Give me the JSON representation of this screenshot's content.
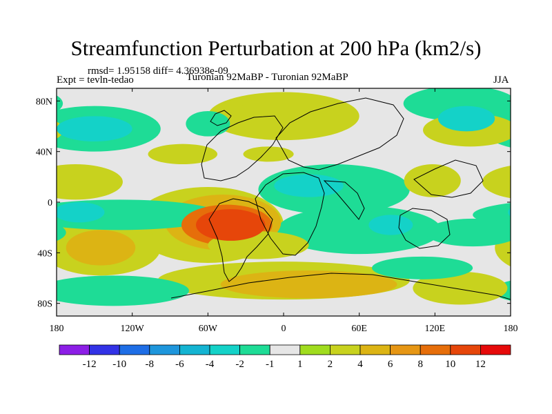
{
  "chart_data": {
    "type": "heatmap",
    "title": "Streamfunction Perturbation at 200 hPa (km2/s)",
    "stats_line": "rmsd= 1.95158 diff= 4.36938e-09",
    "left_label": "Expt = tevln-tedao",
    "center_label": "Turonian  92MaBP - Turonian  92MaBP",
    "right_label": "JJA",
    "projection": "cylindrical-equidistant",
    "x_range": [
      -180,
      180
    ],
    "y_range": [
      -90,
      90
    ],
    "x_ticks": [
      {
        "value": -180,
        "label": "180"
      },
      {
        "value": -120,
        "label": "120W"
      },
      {
        "value": -60,
        "label": "60W"
      },
      {
        "value": 0,
        "label": "0"
      },
      {
        "value": 60,
        "label": "60E"
      },
      {
        "value": 120,
        "label": "120E"
      },
      {
        "value": 180,
        "label": "180"
      }
    ],
    "y_ticks": [
      {
        "value": 80,
        "label": "80N"
      },
      {
        "value": 40,
        "label": "40N"
      },
      {
        "value": 0,
        "label": "0"
      },
      {
        "value": -40,
        "label": "40S"
      },
      {
        "value": -80,
        "label": "80S"
      }
    ],
    "colorbar": {
      "labels": [
        "-12",
        "-10",
        "-8",
        "-6",
        "-4",
        "-2",
        "-1",
        "1",
        "2",
        "4",
        "6",
        "8",
        "10",
        "12"
      ],
      "colors": [
        "#8c1ee6",
        "#3232e6",
        "#1e6ee6",
        "#1e96dc",
        "#14b4d2",
        "#14d2c8",
        "#1edc96",
        "#e6e6e6",
        "#a0dc1e",
        "#c8d21e",
        "#dcb414",
        "#e69614",
        "#e66e0a",
        "#e6460a",
        "#e60a0a"
      ]
    },
    "features": [
      {
        "lon": -42,
        "lat": -18,
        "w": 55,
        "h": 25,
        "value": 11
      },
      {
        "lon": -45,
        "lat": -18,
        "w": 72,
        "h": 32,
        "value": 8
      },
      {
        "lon": -48,
        "lat": -16,
        "w": 92,
        "h": 44,
        "value": 5
      },
      {
        "lon": -60,
        "lat": -18,
        "w": 120,
        "h": 60,
        "value": 2.5
      },
      {
        "lon": -20,
        "lat": -34,
        "w": 80,
        "h": 22,
        "value": 2
      },
      {
        "lon": -145,
        "lat": -36,
        "w": 55,
        "h": 28,
        "value": 4
      },
      {
        "lon": -145,
        "lat": -36,
        "w": 95,
        "h": 44,
        "value": 2
      },
      {
        "lon": 0,
        "lat": -62,
        "w": 200,
        "h": 30,
        "value": 2.5
      },
      {
        "lon": 20,
        "lat": -65,
        "w": 140,
        "h": 22,
        "value": 4
      },
      {
        "lon": 140,
        "lat": -68,
        "w": 75,
        "h": 26,
        "value": 2
      },
      {
        "lon": 0,
        "lat": 68,
        "w": 120,
        "h": 38,
        "value": 2
      },
      {
        "lon": 5,
        "lat": 72,
        "w": 80,
        "h": 26,
        "value": 3
      },
      {
        "lon": -165,
        "lat": 16,
        "w": 75,
        "h": 28,
        "value": 2
      },
      {
        "lon": -150,
        "lat": 17,
        "w": 40,
        "h": 16,
        "value": 3
      },
      {
        "lon": -80,
        "lat": 38,
        "w": 55,
        "h": 16,
        "value": 2
      },
      {
        "lon": -12,
        "lat": 38,
        "w": 40,
        "h": 12,
        "value": 2
      },
      {
        "lon": 118,
        "lat": 17,
        "w": 45,
        "h": 26,
        "value": 2
      },
      {
        "lon": 148,
        "lat": 57,
        "w": 75,
        "h": 26,
        "value": 2
      },
      {
        "lon": -150,
        "lat": 58,
        "w": 105,
        "h": 36,
        "value": -2
      },
      {
        "lon": -150,
        "lat": 58,
        "w": 60,
        "h": 20,
        "value": -4
      },
      {
        "lon": 140,
        "lat": 78,
        "w": 90,
        "h": 28,
        "value": -2
      },
      {
        "lon": 145,
        "lat": 66,
        "w": 45,
        "h": 20,
        "value": -4
      },
      {
        "lon": -130,
        "lat": -10,
        "w": 160,
        "h": 24,
        "value": -2
      },
      {
        "lon": -162,
        "lat": -8,
        "w": 40,
        "h": 16,
        "value": -4
      },
      {
        "lon": 40,
        "lat": 10,
        "w": 120,
        "h": 40,
        "value": -2
      },
      {
        "lon": 20,
        "lat": 13,
        "w": 55,
        "h": 18,
        "value": -4
      },
      {
        "lon": 60,
        "lat": -22,
        "w": 130,
        "h": 38,
        "value": -2
      },
      {
        "lon": 85,
        "lat": -18,
        "w": 35,
        "h": 16,
        "value": -4
      },
      {
        "lon": 150,
        "lat": -24,
        "w": 75,
        "h": 22,
        "value": -2
      },
      {
        "lon": -135,
        "lat": -70,
        "w": 120,
        "h": 24,
        "value": -2
      },
      {
        "lon": 110,
        "lat": -52,
        "w": 80,
        "h": 18,
        "value": -2
      },
      {
        "lon": -60,
        "lat": 62,
        "w": 35,
        "h": 20,
        "value": -2
      }
    ]
  }
}
